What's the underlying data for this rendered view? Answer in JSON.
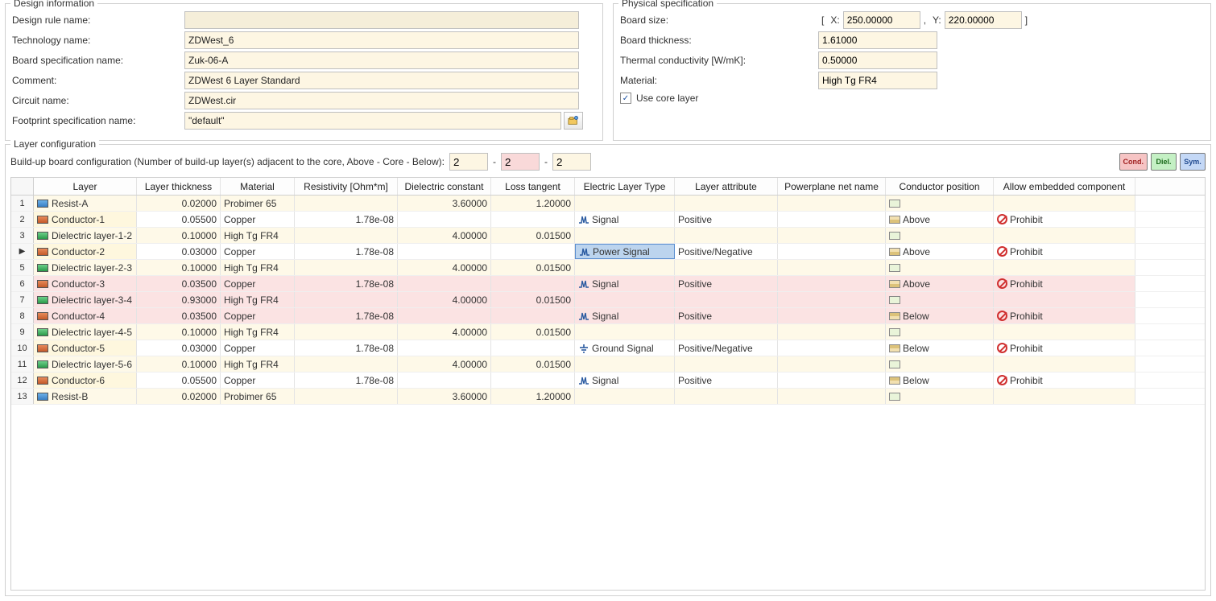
{
  "design_info": {
    "legend": "Design information",
    "labels": {
      "design_rule_name": "Design rule name:",
      "technology_name": "Technology name:",
      "board_spec_name": "Board specification name:",
      "comment": "Comment:",
      "circuit_name": "Circuit name:",
      "footprint_spec_name": "Footprint specification name:"
    },
    "values": {
      "design_rule_name": "",
      "technology_name": "ZDWest_6",
      "board_spec_name": "Zuk-06-A",
      "comment": "ZDWest 6 Layer Standard",
      "circuit_name": "ZDWest.cir",
      "footprint_spec_name": "\"default\""
    }
  },
  "physical_spec": {
    "legend": "Physical specification",
    "labels": {
      "board_size": "Board size:",
      "x": "X:",
      "y": "Y:",
      "board_thickness": "Board thickness:",
      "thermal_cond": "Thermal conductivity [W/mK]:",
      "material": "Material:",
      "use_core": "Use core layer",
      "lbracket": "[",
      "rbracket": "]",
      "comma": ","
    },
    "values": {
      "x": "250.00000",
      "y": "220.00000",
      "board_thickness": "1.61000",
      "thermal_cond": "0.50000",
      "material": "High Tg FR4",
      "use_core": true
    }
  },
  "layer_config": {
    "legend": "Layer configuration",
    "buildup_label": "Build-up board configuration (Number of build-up layer(s) adjacent to the core, Above - Core - Below):",
    "dash": "-",
    "above": "2",
    "core": "2",
    "below": "2",
    "tool_labels": {
      "cond": "Cond.",
      "diel": "Diel.",
      "sym": "Sym."
    },
    "columns": {
      "rowhdr": "",
      "layer": "Layer",
      "thickness": "Layer thickness",
      "material": "Material",
      "resistivity": "Resistivity [Ohm*m]",
      "dielectric": "Dielectric constant",
      "loss": "Loss tangent",
      "etype": "Electric Layer Type",
      "attr": "Layer attribute",
      "pnet": "Powerplane net name",
      "cpos": "Conductor position",
      "embed": "Allow embedded component"
    },
    "rows": [
      {
        "n": "1",
        "icon": "resist",
        "layer": "Resist-A",
        "thickness": "0.02000",
        "material": "Probimer 65",
        "resistivity": "",
        "dielectric": "3.60000",
        "loss": "1.20000",
        "etype": "",
        "etype_icon": "",
        "attr": "",
        "cpos": "",
        "cpos_icon": "none",
        "embed": "",
        "stripe": "yellow",
        "current": false,
        "selected": false
      },
      {
        "n": "2",
        "icon": "cond",
        "layer": "Conductor-1",
        "thickness": "0.05500",
        "material": "Copper",
        "resistivity": "1.78e-08",
        "dielectric": "",
        "loss": "",
        "etype": "Signal",
        "etype_icon": "sig",
        "attr": "Positive",
        "cpos": "Above",
        "cpos_icon": "above",
        "embed": "Prohibit",
        "stripe": "",
        "current": false,
        "selected": false
      },
      {
        "n": "3",
        "icon": "diel",
        "layer": "Dielectric layer-1-2",
        "thickness": "0.10000",
        "material": "High Tg FR4",
        "resistivity": "",
        "dielectric": "4.00000",
        "loss": "0.01500",
        "etype": "",
        "etype_icon": "",
        "attr": "",
        "cpos": "",
        "cpos_icon": "none",
        "embed": "",
        "stripe": "yellow",
        "current": false,
        "selected": false
      },
      {
        "n": "4",
        "icon": "cond",
        "layer": "Conductor-2",
        "thickness": "0.03000",
        "material": "Copper",
        "resistivity": "1.78e-08",
        "dielectric": "",
        "loss": "",
        "etype": "Power Signal",
        "etype_icon": "sig",
        "attr": "Positive/Negative",
        "cpos": "Above",
        "cpos_icon": "above",
        "embed": "Prohibit",
        "stripe": "",
        "current": true,
        "selected": true
      },
      {
        "n": "5",
        "icon": "diel",
        "layer": "Dielectric layer-2-3",
        "thickness": "0.10000",
        "material": "High Tg FR4",
        "resistivity": "",
        "dielectric": "4.00000",
        "loss": "0.01500",
        "etype": "",
        "etype_icon": "",
        "attr": "",
        "cpos": "",
        "cpos_icon": "none",
        "embed": "",
        "stripe": "yellow",
        "current": false,
        "selected": false
      },
      {
        "n": "6",
        "icon": "cond",
        "layer": "Conductor-3",
        "thickness": "0.03500",
        "material": "Copper",
        "resistivity": "1.78e-08",
        "dielectric": "",
        "loss": "",
        "etype": "Signal",
        "etype_icon": "sig",
        "attr": "Positive",
        "cpos": "Above",
        "cpos_icon": "above",
        "embed": "Prohibit",
        "stripe": "pink",
        "current": false,
        "selected": false
      },
      {
        "n": "7",
        "icon": "diel",
        "layer": "Dielectric layer-3-4",
        "thickness": "0.93000",
        "material": "High Tg FR4",
        "resistivity": "",
        "dielectric": "4.00000",
        "loss": "0.01500",
        "etype": "",
        "etype_icon": "",
        "attr": "",
        "cpos": "",
        "cpos_icon": "none",
        "embed": "",
        "stripe": "pink",
        "current": false,
        "selected": false
      },
      {
        "n": "8",
        "icon": "cond",
        "layer": "Conductor-4",
        "thickness": "0.03500",
        "material": "Copper",
        "resistivity": "1.78e-08",
        "dielectric": "",
        "loss": "",
        "etype": "Signal",
        "etype_icon": "sig",
        "attr": "Positive",
        "cpos": "Below",
        "cpos_icon": "below",
        "embed": "Prohibit",
        "stripe": "pink",
        "current": false,
        "selected": false
      },
      {
        "n": "9",
        "icon": "diel",
        "layer": "Dielectric layer-4-5",
        "thickness": "0.10000",
        "material": "High Tg FR4",
        "resistivity": "",
        "dielectric": "4.00000",
        "loss": "0.01500",
        "etype": "",
        "etype_icon": "",
        "attr": "",
        "cpos": "",
        "cpos_icon": "none",
        "embed": "",
        "stripe": "yellow",
        "current": false,
        "selected": false
      },
      {
        "n": "10",
        "icon": "cond",
        "layer": "Conductor-5",
        "thickness": "0.03000",
        "material": "Copper",
        "resistivity": "1.78e-08",
        "dielectric": "",
        "loss": "",
        "etype": "Ground Signal",
        "etype_icon": "gnd",
        "attr": "Positive/Negative",
        "cpos": "Below",
        "cpos_icon": "below",
        "embed": "Prohibit",
        "stripe": "",
        "current": false,
        "selected": false
      },
      {
        "n": "11",
        "icon": "diel",
        "layer": "Dielectric layer-5-6",
        "thickness": "0.10000",
        "material": "High Tg FR4",
        "resistivity": "",
        "dielectric": "4.00000",
        "loss": "0.01500",
        "etype": "",
        "etype_icon": "",
        "attr": "",
        "cpos": "",
        "cpos_icon": "none",
        "embed": "",
        "stripe": "yellow",
        "current": false,
        "selected": false
      },
      {
        "n": "12",
        "icon": "cond",
        "layer": "Conductor-6",
        "thickness": "0.05500",
        "material": "Copper",
        "resistivity": "1.78e-08",
        "dielectric": "",
        "loss": "",
        "etype": "Signal",
        "etype_icon": "sig",
        "attr": "Positive",
        "cpos": "Below",
        "cpos_icon": "below",
        "embed": "Prohibit",
        "stripe": "",
        "current": false,
        "selected": false
      },
      {
        "n": "13",
        "icon": "resist",
        "layer": "Resist-B",
        "thickness": "0.02000",
        "material": "Probimer 65",
        "resistivity": "",
        "dielectric": "3.60000",
        "loss": "1.20000",
        "etype": "",
        "etype_icon": "",
        "attr": "",
        "cpos": "",
        "cpos_icon": "none",
        "embed": "",
        "stripe": "yellow",
        "current": false,
        "selected": false
      }
    ]
  },
  "style": {
    "colors": {
      "input_bg": "#fdf6e3",
      "core_bg": "#f9d9d9",
      "row_yellow": "#fef9e8",
      "row_pink": "#fbe3e3",
      "layer_col_bg": "#fef7de",
      "selected_bg": "#bcd4ee",
      "border": "#cfcfcf",
      "prohibit": "#d03030"
    },
    "font_family": "Segoe UI",
    "font_size_pt": 9
  }
}
